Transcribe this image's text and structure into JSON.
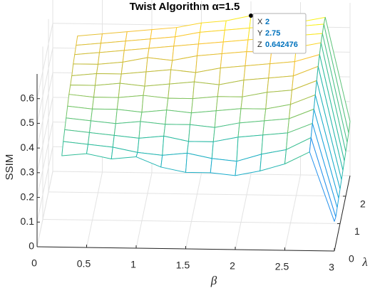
{
  "chart_data": {
    "type": "mesh3d",
    "title": "Twist Algorithm α=1.5",
    "xlabel": "β",
    "ylabel": "λ",
    "zlabel": "SSIM",
    "x": [
      0.25,
      0.5,
      0.75,
      1,
      1.25,
      1.5,
      1.75,
      2,
      2.25,
      2.5,
      2.75,
      3
    ],
    "y": [
      0,
      0.25,
      0.5,
      0.75,
      1,
      1.25,
      1.5,
      1.75,
      2,
      2.25,
      2.5,
      2.75
    ],
    "z": [
      [
        0.37,
        0.38,
        0.36,
        0.37,
        0.33,
        0.31,
        0.31,
        0.3,
        0.32,
        0.35,
        0.4,
        0.12
      ],
      [
        0.4,
        0.39,
        0.38,
        0.36,
        0.35,
        0.36,
        0.34,
        0.33,
        0.36,
        0.38,
        0.43,
        0.11
      ],
      [
        0.42,
        0.41,
        0.4,
        0.39,
        0.4,
        0.38,
        0.38,
        0.4,
        0.41,
        0.42,
        0.46,
        0.12
      ],
      [
        0.44,
        0.43,
        0.42,
        0.43,
        0.42,
        0.42,
        0.41,
        0.43,
        0.44,
        0.45,
        0.49,
        0.13
      ],
      [
        0.46,
        0.45,
        0.45,
        0.44,
        0.45,
        0.44,
        0.45,
        0.46,
        0.46,
        0.48,
        0.52,
        0.14
      ],
      [
        0.48,
        0.47,
        0.47,
        0.48,
        0.47,
        0.47,
        0.48,
        0.48,
        0.5,
        0.51,
        0.55,
        0.15
      ],
      [
        0.49,
        0.49,
        0.5,
        0.49,
        0.5,
        0.51,
        0.5,
        0.52,
        0.53,
        0.54,
        0.58,
        0.16
      ],
      [
        0.5,
        0.51,
        0.51,
        0.52,
        0.53,
        0.52,
        0.54,
        0.55,
        0.56,
        0.57,
        0.6,
        0.17
      ],
      [
        0.52,
        0.52,
        0.53,
        0.55,
        0.54,
        0.56,
        0.57,
        0.58,
        0.58,
        0.6,
        0.62,
        0.18
      ],
      [
        0.53,
        0.54,
        0.55,
        0.56,
        0.57,
        0.58,
        0.59,
        0.6,
        0.61,
        0.62,
        0.63,
        0.19
      ],
      [
        0.54,
        0.55,
        0.56,
        0.57,
        0.58,
        0.6,
        0.61,
        0.62,
        0.63,
        0.63,
        0.64,
        0.2
      ],
      [
        0.55,
        0.56,
        0.57,
        0.58,
        0.59,
        0.61,
        0.62,
        0.642476,
        0.63,
        0.62,
        0.64,
        0.22
      ]
    ],
    "xlim": [
      0,
      3
    ],
    "xticks": [
      0,
      0.5,
      1,
      1.5,
      2,
      2.5,
      3
    ],
    "ylim": [
      0,
      2.75
    ],
    "yticks": [
      0,
      1,
      2
    ],
    "zlim": [
      0,
      0.7
    ],
    "zticks": [
      0,
      0.1,
      0.2,
      0.3,
      0.4,
      0.5,
      0.6
    ],
    "grid": true,
    "colormap": [
      "#3e26a8",
      "#4a5cfd",
      "#2e87f7",
      "#17a9d6",
      "#2abc9f",
      "#6fc66b",
      "#c0bc3c",
      "#fbc231",
      "#f9fb15"
    ],
    "datatip": {
      "x_label": "X",
      "y_label": "Y",
      "z_label": "Z",
      "x": 2,
      "y": 2.75,
      "z": 0.642476
    }
  }
}
